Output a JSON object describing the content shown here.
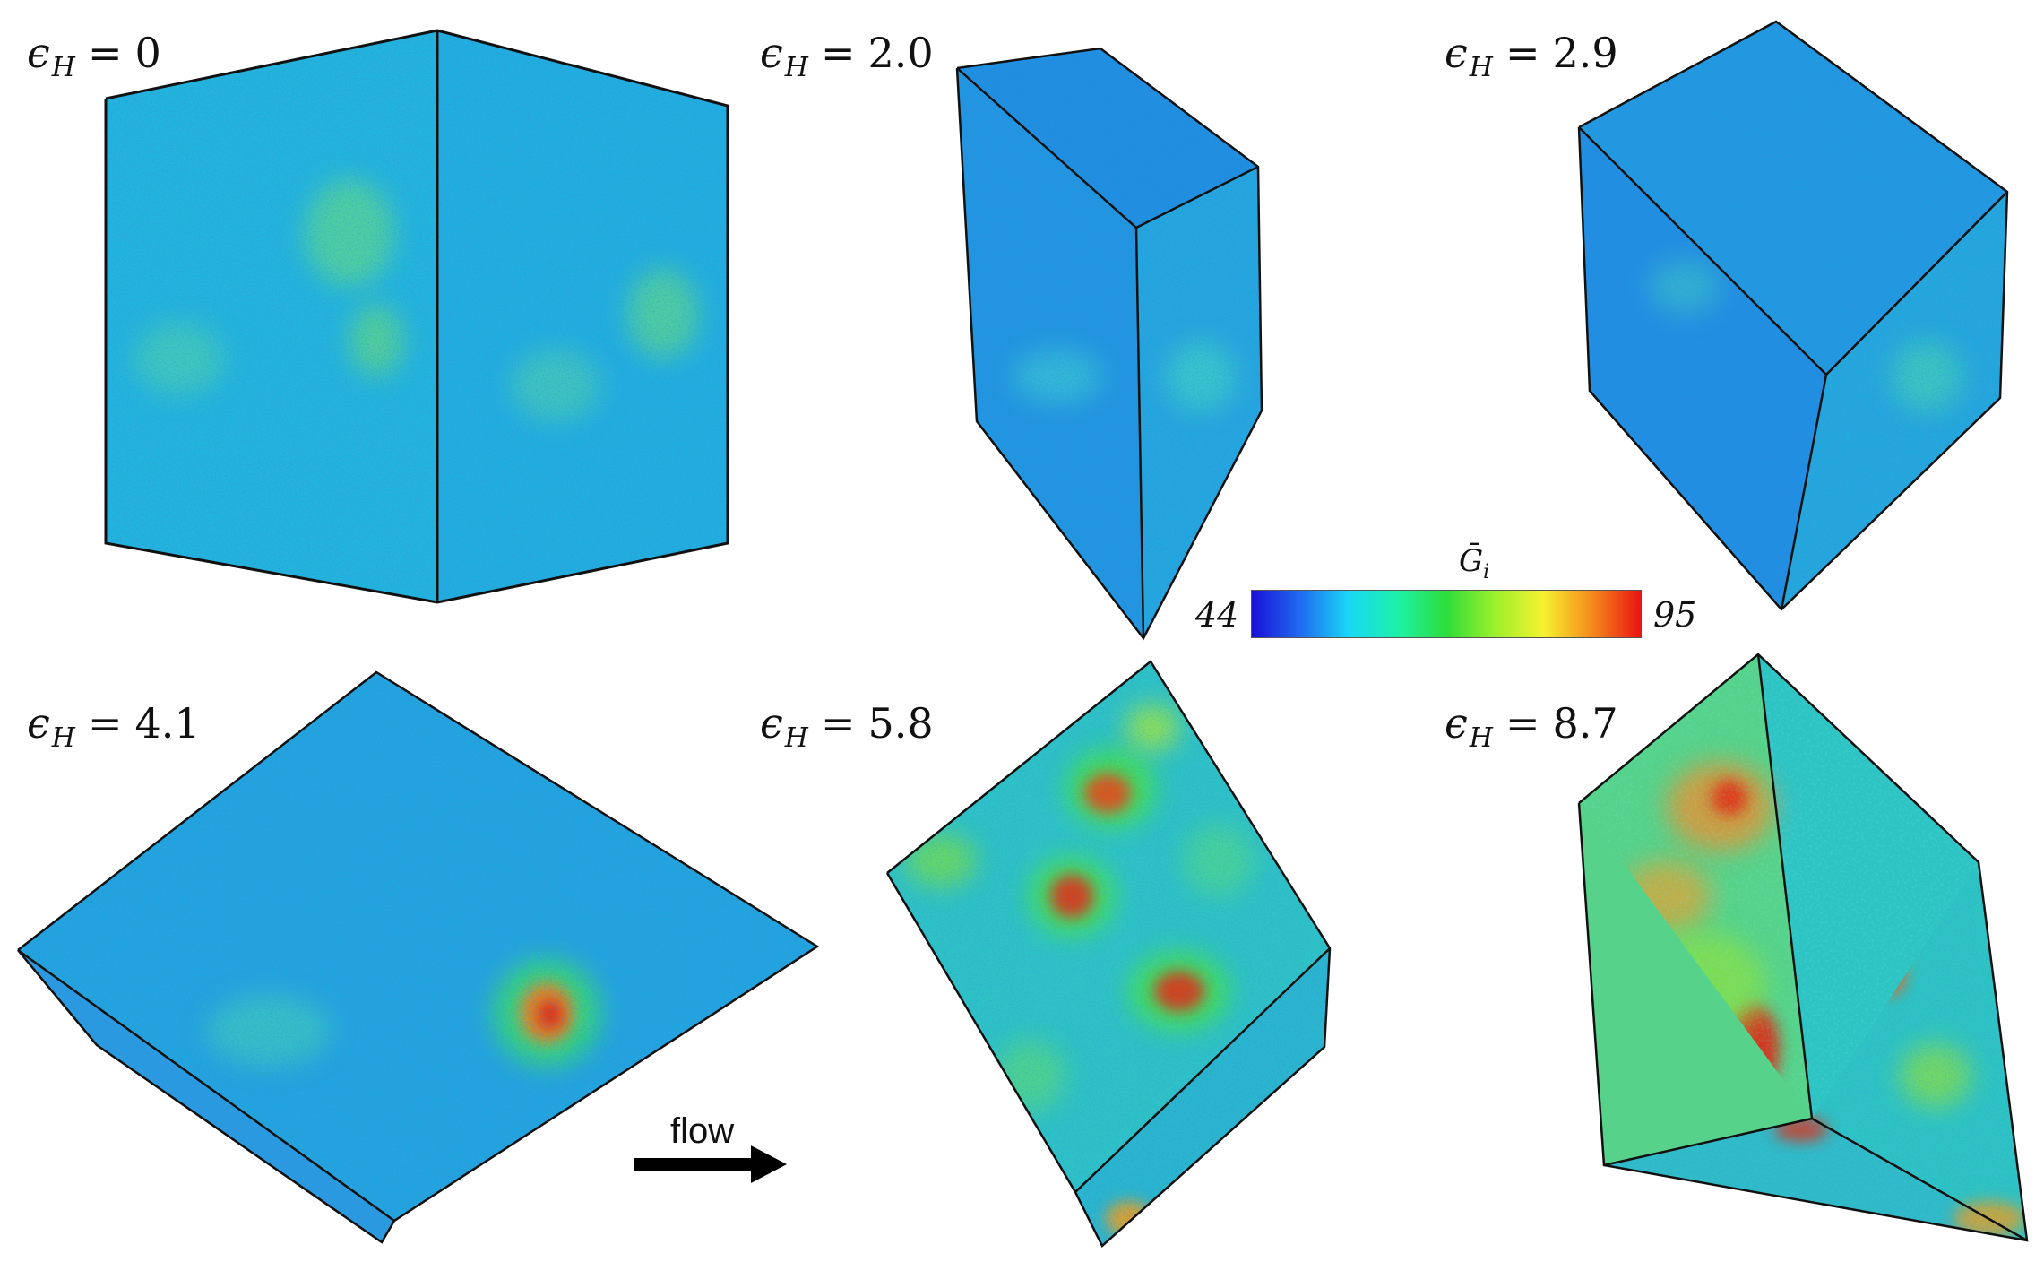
{
  "panels": [
    {
      "symbol": "ϵ",
      "subscript": "H",
      "equals": "=",
      "value": "0"
    },
    {
      "symbol": "ϵ",
      "subscript": "H",
      "equals": "=",
      "value": "2.0"
    },
    {
      "symbol": "ϵ",
      "subscript": "H",
      "equals": "=",
      "value": "2.9"
    },
    {
      "symbol": "ϵ",
      "subscript": "H",
      "equals": "=",
      "value": "4.1"
    },
    {
      "symbol": "ϵ",
      "subscript": "H",
      "equals": "=",
      "value": "5.8"
    },
    {
      "symbol": "ϵ",
      "subscript": "H",
      "equals": "=",
      "value": "8.7"
    }
  ],
  "colorbar": {
    "title": "Ḡ",
    "title_subscript": "i",
    "min": "44",
    "max": "95",
    "colors": [
      "#1a10d8",
      "#1f6cf0",
      "#19d8f5",
      "#1cf2a8",
      "#2ddd3a",
      "#9cf02a",
      "#f5f230",
      "#f58a1c",
      "#e81412"
    ]
  },
  "flow": {
    "label": "flow"
  }
}
